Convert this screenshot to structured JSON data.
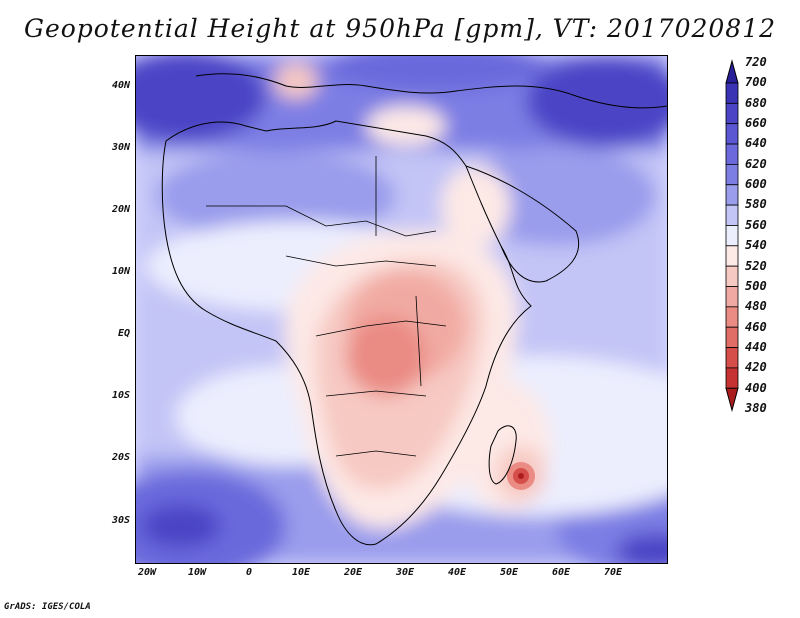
{
  "title": "Geopotential Height at 950hPa [gpm], VT: 2017020812",
  "footer": "GrADS: IGES/COLA",
  "map": {
    "y_labels": [
      "40N",
      "30N",
      "20N",
      "10N",
      "EQ",
      "10S",
      "20S",
      "30S"
    ],
    "x_labels": [
      "20W",
      "10W",
      "0",
      "10E",
      "20E",
      "30E",
      "40E",
      "50E",
      "60E",
      "70E"
    ]
  },
  "colorbar": {
    "levels": [
      "720",
      "700",
      "680",
      "660",
      "640",
      "620",
      "600",
      "580",
      "560",
      "540",
      "520",
      "500",
      "480",
      "460",
      "440",
      "420",
      "400",
      "380"
    ],
    "colors": {
      "above_700": "#2a1f9a",
      "680_700": "#3a33b4",
      "660_680": "#4b45c6",
      "640_660": "#5b57d2",
      "620_640": "#6b69dc",
      "600_620": "#7d7ee4",
      "580_600": "#9a9cec",
      "560_580": "#c3c5f6",
      "540_560": "#eceefe",
      "520_540": "#fde9e6",
      "500_520": "#f7c9c3",
      "480_500": "#f1aaa3",
      "460_480": "#ea8b84",
      "440_460": "#e06d66",
      "420_440": "#d64e4a",
      "400_420": "#c63232",
      "below_400": "#ac1c1c"
    }
  }
}
